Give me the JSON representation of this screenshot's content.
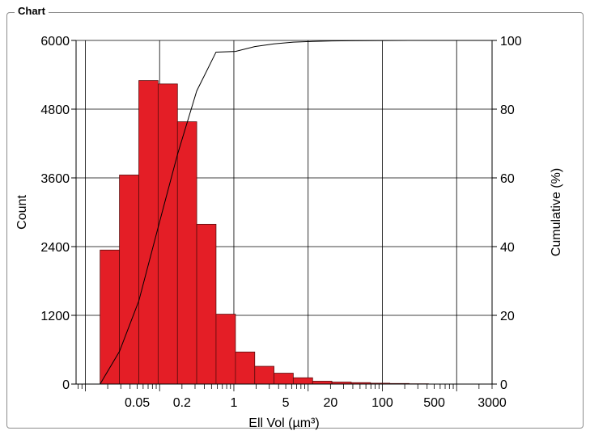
{
  "panel": {
    "title": "Chart"
  },
  "chart_data": {
    "type": "bar",
    "xscale": "log",
    "xlim": [
      0.0075,
      3000
    ],
    "x_ticks": [
      "0.05",
      "0.2",
      "1",
      "5",
      "20",
      "100",
      "500",
      "3000"
    ],
    "xlabel": "Ell Vol (µm³)",
    "ylabel": "Count",
    "ylim": [
      0,
      6000
    ],
    "y_ticks": [
      "0",
      "1200",
      "2400",
      "3600",
      "4800",
      "6000"
    ],
    "y2label": "Cumulative (%)",
    "y2lim": [
      0,
      100
    ],
    "y2_ticks": [
      "0",
      "20",
      "40",
      "60",
      "80",
      "100"
    ],
    "grid": true,
    "bars": [
      {
        "x0": 0.0158,
        "x1": 0.0288,
        "count": 2340
      },
      {
        "x0": 0.0288,
        "x1": 0.0525,
        "count": 3650
      },
      {
        "x0": 0.0525,
        "x1": 0.0955,
        "count": 5300
      },
      {
        "x0": 0.0955,
        "x1": 0.174,
        "count": 5240
      },
      {
        "x0": 0.174,
        "x1": 0.316,
        "count": 4580
      },
      {
        "x0": 0.316,
        "x1": 0.575,
        "count": 2790
      },
      {
        "x0": 0.575,
        "x1": 1.05,
        "count": 1220
      },
      {
        "x0": 1.05,
        "x1": 1.91,
        "count": 560
      },
      {
        "x0": 1.91,
        "x1": 3.47,
        "count": 310
      },
      {
        "x0": 3.47,
        "x1": 6.31,
        "count": 190
      },
      {
        "x0": 6.31,
        "x1": 11.5,
        "count": 110
      },
      {
        "x0": 11.5,
        "x1": 20.9,
        "count": 50
      },
      {
        "x0": 20.9,
        "x1": 38.0,
        "count": 35
      },
      {
        "x0": 38.0,
        "x1": 69.2,
        "count": 25
      },
      {
        "x0": 69.2,
        "x1": 126,
        "count": 15
      },
      {
        "x0": 126,
        "x1": 229,
        "count": 10
      },
      {
        "x0": 229,
        "x1": 417,
        "count": 5
      }
    ],
    "cumulative": {
      "x": [
        0.0158,
        0.0288,
        0.0525,
        0.0955,
        0.174,
        0.316,
        0.575,
        1.05,
        1.91,
        3.47,
        6.31,
        11.5,
        20.9,
        38.0,
        69.2,
        126,
        229,
        417,
        1000,
        3000
      ],
      "y": [
        0,
        9.5,
        24.2,
        45.6,
        66.8,
        85.3,
        96.6,
        96.8,
        98.2,
        99.0,
        99.5,
        99.7,
        99.85,
        99.9,
        99.95,
        99.97,
        99.99,
        100,
        100,
        100
      ]
    },
    "colors": {
      "bar": "#e41e26",
      "bar_edge": "#5a0c0c",
      "line": "#000000",
      "grid": "#000000"
    }
  }
}
